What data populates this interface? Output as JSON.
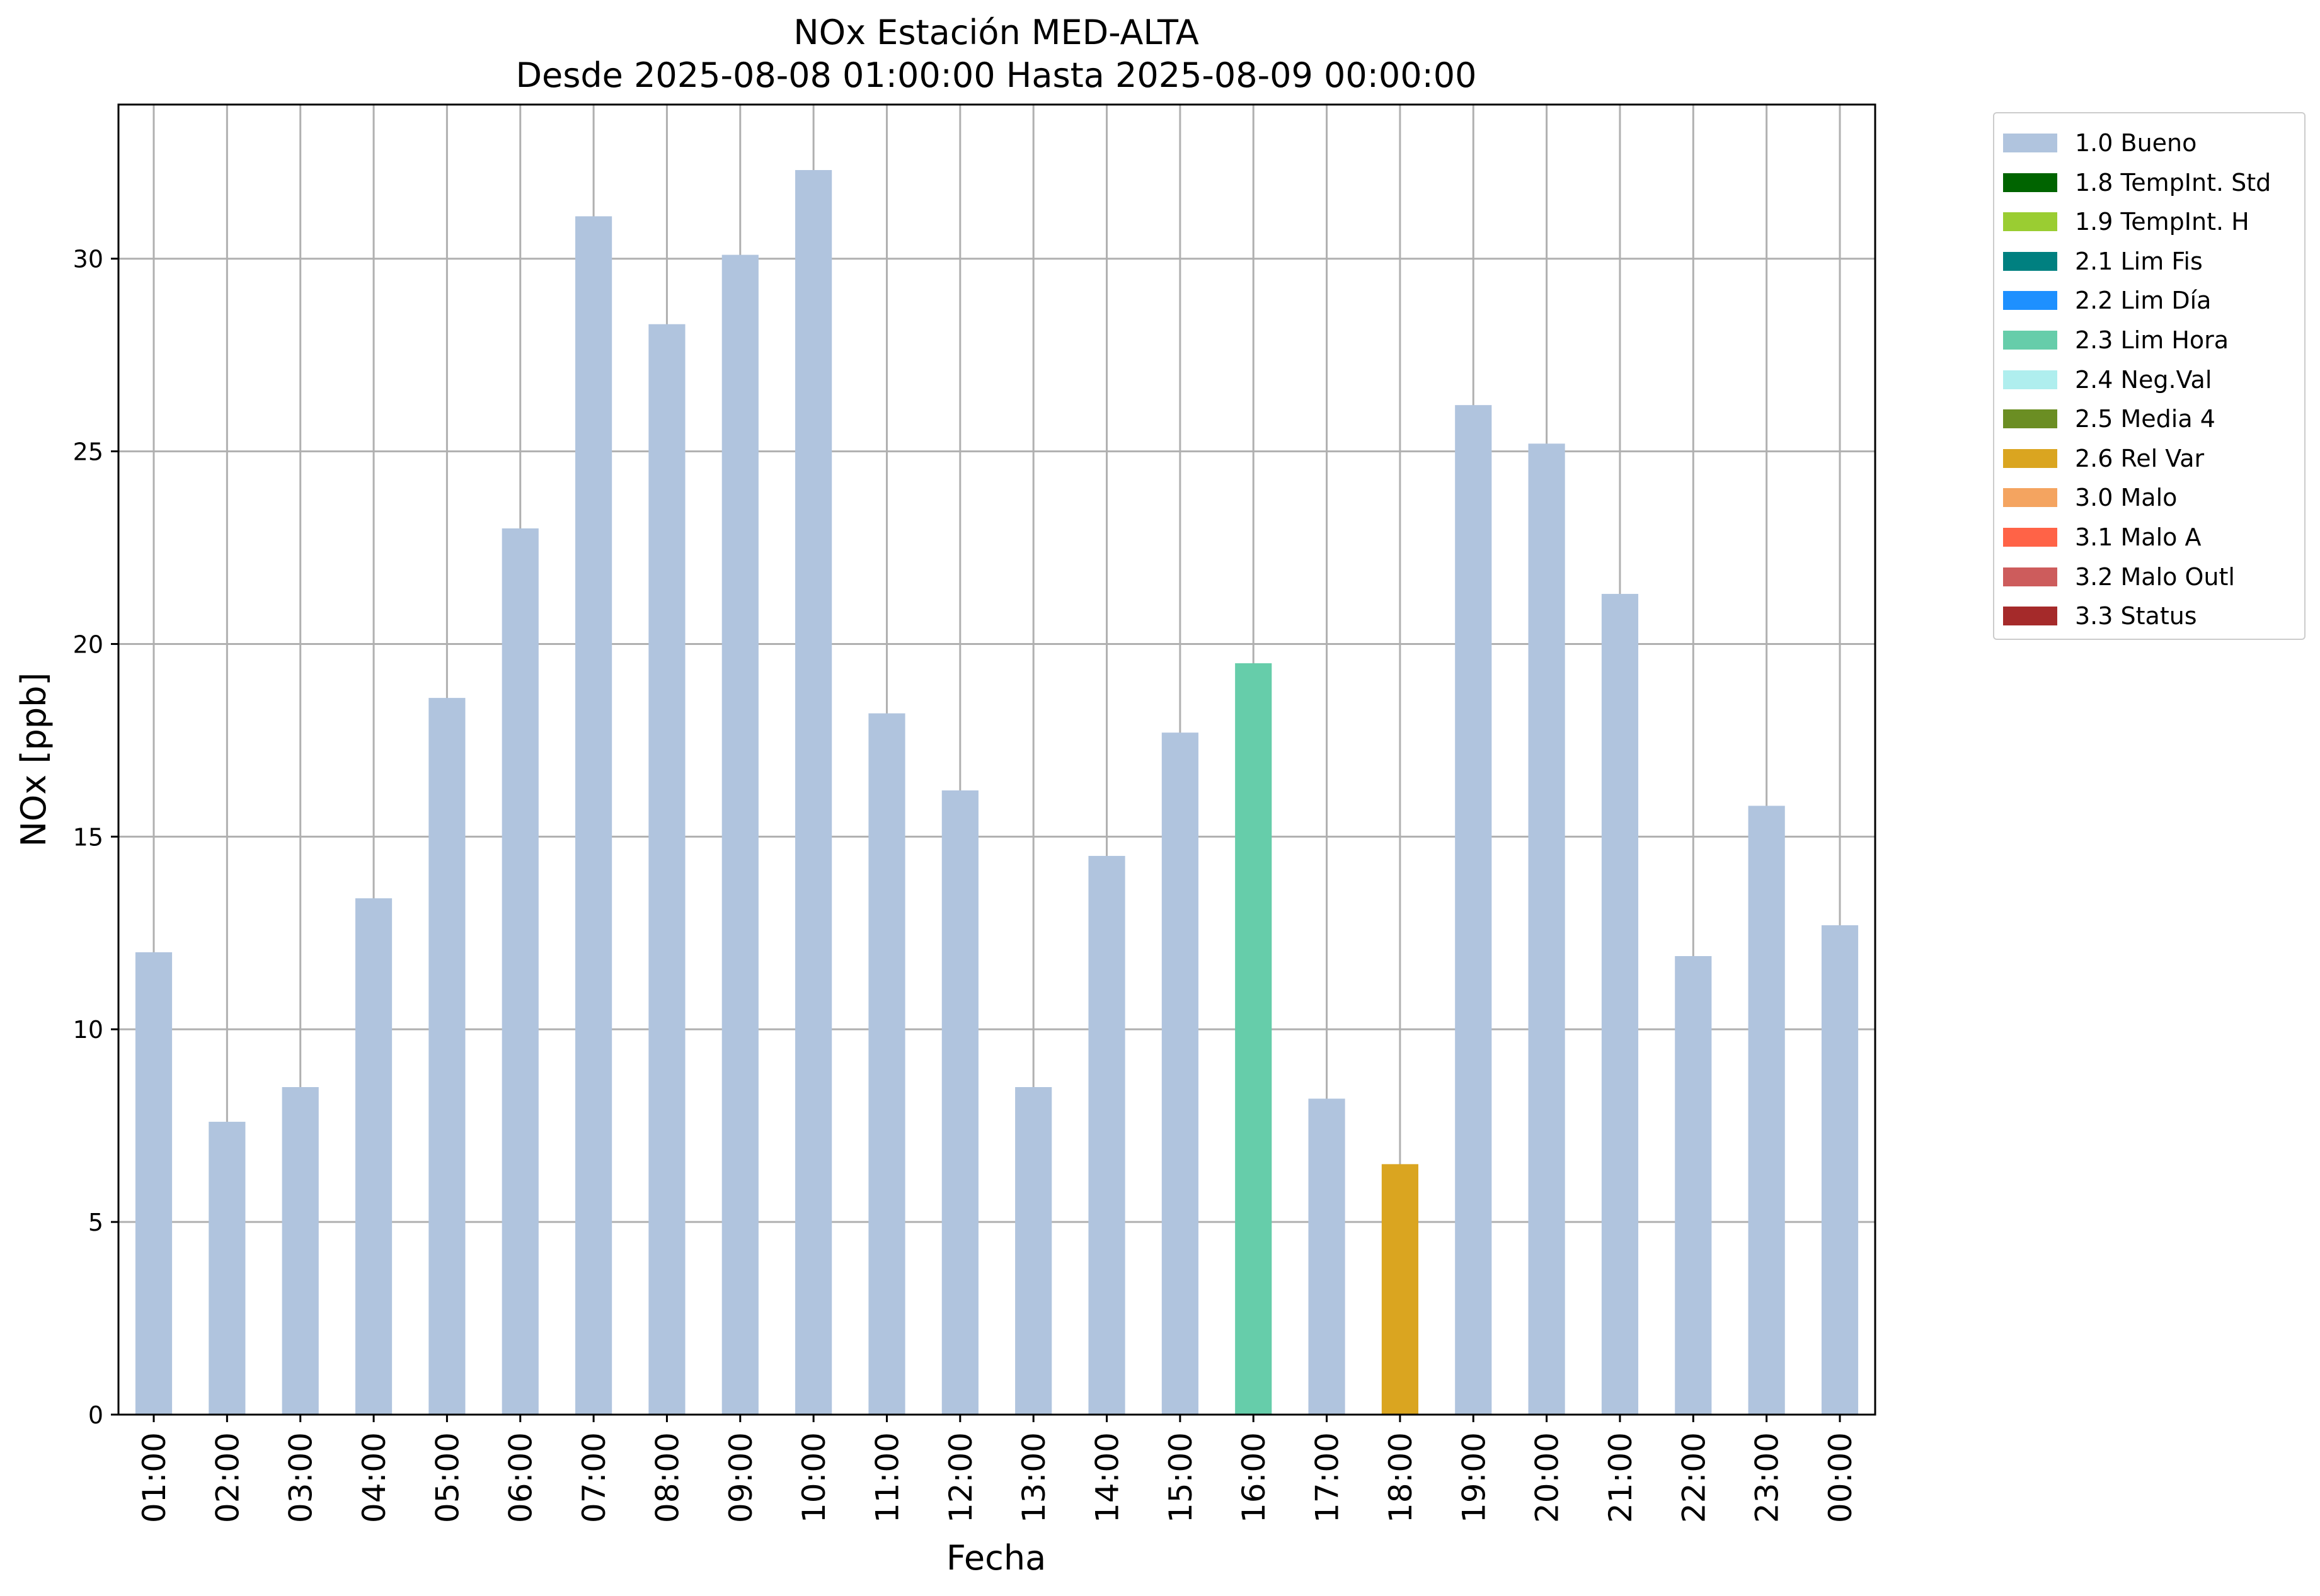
{
  "chart_data": {
    "type": "bar",
    "title": "NOx Estación MED-ALTA",
    "subtitle": "Desde 2025-08-08 01:00:00 Hasta 2025-08-09 00:00:00",
    "xlabel": "Fecha",
    "ylabel": "NOx [ppb]",
    "ylim": [
      0,
      34
    ],
    "yticks": [
      0,
      5,
      10,
      15,
      20,
      25,
      30
    ],
    "grid": true,
    "legend_position": "outside-top-right",
    "categories": [
      "01:00",
      "02:00",
      "03:00",
      "04:00",
      "05:00",
      "06:00",
      "07:00",
      "08:00",
      "09:00",
      "10:00",
      "11:00",
      "12:00",
      "13:00",
      "14:00",
      "15:00",
      "16:00",
      "17:00",
      "18:00",
      "19:00",
      "20:00",
      "21:00",
      "22:00",
      "23:00",
      "00:00"
    ],
    "values": [
      12.0,
      7.6,
      8.5,
      13.4,
      18.6,
      23.0,
      31.1,
      28.3,
      30.1,
      32.3,
      18.2,
      16.2,
      8.5,
      14.5,
      17.7,
      19.5,
      8.2,
      6.5,
      26.2,
      25.2,
      21.3,
      11.9,
      15.8,
      12.7
    ],
    "flags": [
      "1.0 Bueno",
      "1.0 Bueno",
      "1.0 Bueno",
      "1.0 Bueno",
      "1.0 Bueno",
      "1.0 Bueno",
      "1.0 Bueno",
      "1.0 Bueno",
      "1.0 Bueno",
      "1.0 Bueno",
      "1.0 Bueno",
      "1.0 Bueno",
      "1.0 Bueno",
      "1.0 Bueno",
      "1.0 Bueno",
      "2.3 Lim Hora",
      "1.0 Bueno",
      "2.6 Rel Var",
      "1.0 Bueno",
      "1.0 Bueno",
      "1.0 Bueno",
      "1.0 Bueno",
      "1.0 Bueno",
      "1.0 Bueno"
    ],
    "legend": [
      {
        "label": "1.0 Bueno",
        "color": "#b0c4de"
      },
      {
        "label": "1.8 TempInt. Std",
        "color": "#006400"
      },
      {
        "label": "1.9 TempInt. H",
        "color": "#9acd32"
      },
      {
        "label": "2.1 Lim Fis",
        "color": "#008080"
      },
      {
        "label": "2.2 Lim Día",
        "color": "#1e90ff"
      },
      {
        "label": "2.3 Lim Hora",
        "color": "#66cdaa"
      },
      {
        "label": "2.4 Neg.Val",
        "color": "#afeeee"
      },
      {
        "label": "2.5 Media 4",
        "color": "#6b8e23"
      },
      {
        "label": "2.6 Rel Var",
        "color": "#daa520"
      },
      {
        "label": "3.0 Malo",
        "color": "#f4a460"
      },
      {
        "label": "3.1 Malo A",
        "color": "#ff6347"
      },
      {
        "label": "3.2 Malo Outl",
        "color": "#cd5c5c"
      },
      {
        "label": "3.3 Status",
        "color": "#a52a2a"
      }
    ]
  }
}
